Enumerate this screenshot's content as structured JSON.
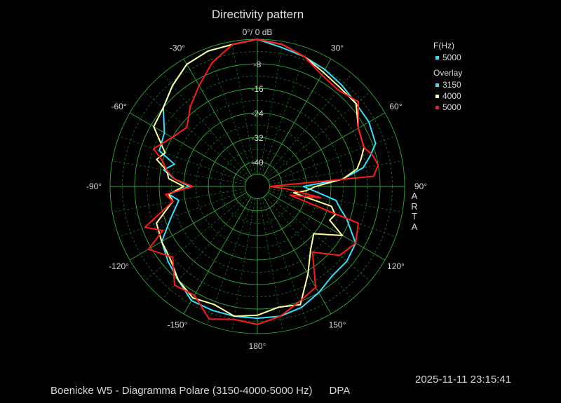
{
  "chart_data": {
    "type": "polar",
    "title": "Directivity pattern",
    "zero_label": "0°/ 0 dB",
    "radial_ticks": [
      -8,
      -16,
      -24,
      -32,
      -40
    ],
    "rlim_db": [
      -48,
      0
    ],
    "angle_labels": [
      {
        "deg": -30,
        "label": "-30°"
      },
      {
        "deg": 30,
        "label": "30°"
      },
      {
        "deg": -60,
        "label": "-60°"
      },
      {
        "deg": 60,
        "label": "60°"
      },
      {
        "deg": -90,
        "label": "-90°"
      },
      {
        "deg": 90,
        "label": "90°"
      },
      {
        "deg": -120,
        "label": "-120°"
      },
      {
        "deg": 120,
        "label": "120°"
      },
      {
        "deg": -150,
        "label": "-150°"
      },
      {
        "deg": 150,
        "label": "150°"
      },
      {
        "deg": 180,
        "label": "180°"
      }
    ],
    "grid": true,
    "legend": {
      "header": "F(Hz)",
      "reference": {
        "label": "5000",
        "color": "#33e0ff"
      },
      "overlay_label": "Overlay",
      "entries": [
        {
          "label": "3150",
          "color": "#33e0ff"
        },
        {
          "label": "4000",
          "color": "#ffff99"
        },
        {
          "label": "5000",
          "color": "#ff1a1a"
        }
      ]
    },
    "series": [
      {
        "name": "3150",
        "color": "#33e0ff",
        "angles": [
          -180,
          -170,
          -160,
          -150,
          -140,
          -130,
          -120,
          -110,
          -100,
          -95,
          -90,
          -85,
          -80,
          -75,
          -70,
          -60,
          -50,
          -40,
          -30,
          -20,
          -10,
          0,
          10,
          20,
          30,
          40,
          50,
          60,
          70,
          75,
          80,
          85,
          90,
          95,
          100,
          105,
          110,
          120,
          130,
          140,
          150,
          160,
          170
        ],
        "db": [
          -5,
          -5,
          -5,
          -5,
          -8,
          -10,
          -12,
          -18,
          -22,
          -19,
          -26,
          -21,
          -17,
          -20,
          -14,
          -13,
          -8,
          -5,
          -2,
          -1,
          -1,
          0,
          -2,
          -3,
          -4,
          -5,
          -6,
          -6,
          -7,
          -10,
          -13,
          -20,
          -33,
          -29,
          -22,
          -20,
          -17,
          -11,
          -10,
          -10,
          -8,
          -6,
          -5
        ]
      },
      {
        "name": "4000",
        "color": "#ffff99",
        "angles": [
          -180,
          -170,
          -160,
          -150,
          -140,
          -130,
          -120,
          -110,
          -100,
          -95,
          -90,
          -85,
          -80,
          -75,
          -70,
          -60,
          -50,
          -40,
          -30,
          -20,
          -10,
          0,
          10,
          20,
          30,
          40,
          50,
          60,
          70,
          75,
          80,
          85,
          90,
          95,
          100,
          105,
          110,
          115,
          120,
          130,
          140,
          150,
          160,
          170
        ],
        "db": [
          -6,
          -5,
          -7,
          -6,
          -8,
          -11,
          -12,
          -13,
          -20,
          -19,
          -24,
          -19,
          -18,
          -14,
          -16,
          -9,
          -8,
          -5,
          -2,
          -1,
          -1,
          0,
          -1,
          -3,
          -5,
          -6,
          -6,
          -10,
          -11,
          -13,
          -15,
          -20,
          -29,
          -32,
          -36,
          -23,
          -21,
          -22,
          -16,
          -24,
          -21,
          -15,
          -7,
          -8
        ]
      },
      {
        "name": "5000",
        "color": "#ff1a1a",
        "angles": [
          -180,
          -170,
          -160,
          -150,
          -140,
          -130,
          -120,
          -115,
          -110,
          -100,
          -95,
          -90,
          -85,
          -80,
          -75,
          -70,
          -60,
          -50,
          -40,
          -30,
          -20,
          -10,
          0,
          10,
          20,
          30,
          40,
          50,
          60,
          70,
          75,
          80,
          85,
          90,
          95,
          100,
          105,
          110,
          120,
          130,
          140,
          150,
          160,
          170
        ],
        "db": [
          -3,
          -4,
          -2,
          -7,
          -6,
          -12,
          -7,
          -14,
          -9,
          -20,
          -18,
          -27,
          -21,
          -18,
          -16,
          -12,
          -16,
          -18,
          -14,
          -10,
          -5,
          -1,
          0,
          -1,
          -3,
          -6,
          -7,
          -5,
          -10,
          -11,
          -9,
          -8,
          -10,
          -44,
          -38,
          -27,
          -37,
          -13,
          -11,
          -13,
          -20,
          -10,
          -8,
          -5
        ]
      }
    ]
  },
  "footer_text": "Boenicke W5 - Diagramma Polare (3150-4000-5000 Hz)",
  "footer_tag": "DPA",
  "timestamp": "2025-11-11  23:15:41",
  "watermark": "ARTA"
}
